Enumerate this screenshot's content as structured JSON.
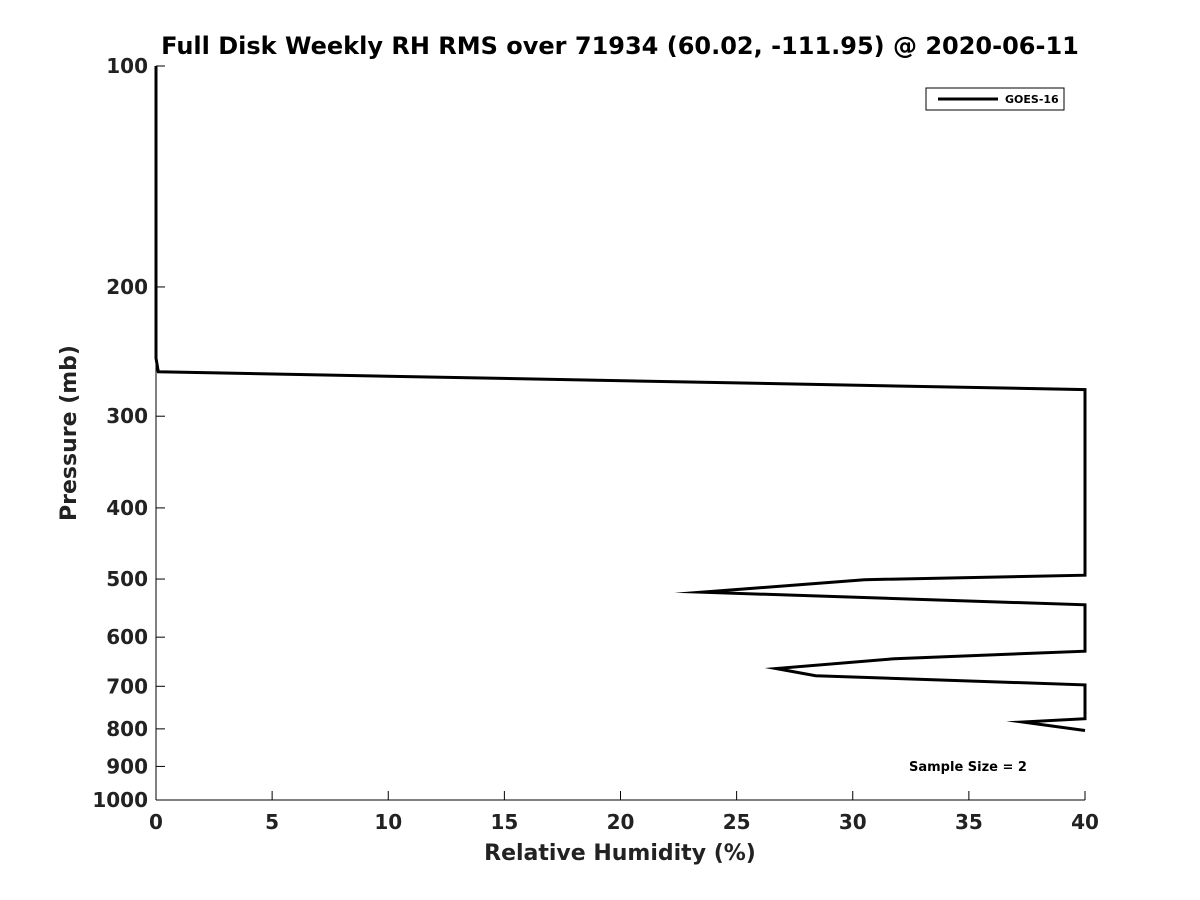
{
  "chart_data": {
    "type": "line",
    "title": "Full Disk Weekly RH RMS over 71934 (60.02, -111.95) @ 2020-06-11",
    "xlabel": "Relative Humidity (%)",
    "ylabel": "Pressure (mb)",
    "xlim": [
      0,
      40
    ],
    "ylim": [
      100,
      1000
    ],
    "y_scale": "log",
    "y_reversed": true,
    "x_ticks": [
      0,
      5,
      10,
      15,
      20,
      25,
      30,
      35,
      40
    ],
    "y_ticks": [
      100,
      200,
      300,
      400,
      500,
      600,
      700,
      800,
      900,
      1000
    ],
    "grid": false,
    "legend_position": "top-right",
    "series": [
      {
        "name": "GOES-16",
        "color": "#000000",
        "points": [
          {
            "x": 0,
            "y": 100
          },
          {
            "x": 0,
            "y": 150
          },
          {
            "x": 0,
            "y": 200
          },
          {
            "x": 0,
            "y": 250
          },
          {
            "x": 0.1,
            "y": 261
          },
          {
            "x": 40,
            "y": 276
          },
          {
            "x": 40,
            "y": 494
          },
          {
            "x": 30.5,
            "y": 501
          },
          {
            "x": 23.5,
            "y": 521
          },
          {
            "x": 40,
            "y": 542
          },
          {
            "x": 40,
            "y": 627
          },
          {
            "x": 31.8,
            "y": 642
          },
          {
            "x": 26.7,
            "y": 662
          },
          {
            "x": 28.4,
            "y": 677
          },
          {
            "x": 40,
            "y": 697
          },
          {
            "x": 40,
            "y": 775
          },
          {
            "x": 37.3,
            "y": 783
          },
          {
            "x": 40,
            "y": 804
          }
        ]
      }
    ],
    "annotation": "Sample Size = 2"
  }
}
